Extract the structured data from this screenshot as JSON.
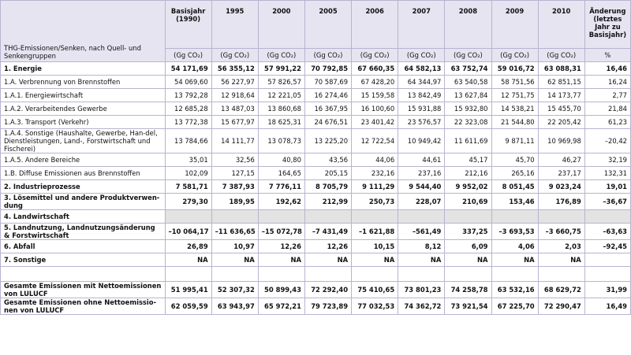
{
  "table": {
    "corner": "THG-Emissionen/Senken, nach Quell- und Senkengruppen",
    "columns": [
      "Basisjahr (1990)",
      "1995",
      "2000",
      "2005",
      "2006",
      "2007",
      "2008",
      "2009",
      "2010",
      "Änderung (letztes Jahr zu Basisjahr)"
    ],
    "units": [
      "(Gg CO₂)",
      "(Gg CO₂)",
      "(Gg CO₂)",
      "(Gg CO₂)",
      "(Gg CO₂)",
      "(Gg CO₂)",
      "(Gg CO₂)",
      "(Gg CO₂)",
      "(Gg CO₂)",
      "%"
    ],
    "rows": [
      {
        "label": "1. Energie",
        "bold": true,
        "values": [
          "54 171,69",
          "56 355,12",
          "57 991,22",
          "70 792,85",
          "67 660,35",
          "64 582,13",
          "63 752,74",
          "59 016,72",
          "63 088,31",
          "16,46"
        ]
      },
      {
        "label": "1.A. Verbrennung von Brennstoffen",
        "values": [
          "54 069,60",
          "56 227,97",
          "57 826,57",
          "70 587,69",
          "67 428,20",
          "64 344,97",
          "63 540,58",
          "58 751,56",
          "62 851,15",
          "16,24"
        ]
      },
      {
        "label": "1.A.1. Energiewirtschaft",
        "values": [
          "13 792,28",
          "12 918,64",
          "12 221,05",
          "16 274,46",
          "15 159,58",
          "13 842,49",
          "13 627,84",
          "12 751,75",
          "14 173,77",
          "2,77"
        ]
      },
      {
        "label": "1.A.2. Verarbeitendes Gewerbe",
        "values": [
          "12 685,28",
          "13 487,03",
          "13 860,68",
          "16 367,95",
          "16 100,60",
          "15 931,88",
          "15 932,80",
          "14 538,21",
          "15 455,70",
          "21,84"
        ]
      },
      {
        "label": "1.A.3. Transport (Verkehr)",
        "values": [
          "13 772,38",
          "15 677,97",
          "18 625,31",
          "24 676,51",
          "23 401,42",
          "23 576,57",
          "22 323,08",
          "21 544,80",
          "22 205,42",
          "61,23"
        ]
      },
      {
        "label": "1.A.4. Sonstige (Haushalte, Gewerbe, Han-del, Dienstleistungen, Land-, Forstwirtschaft und Fischerei)",
        "values": [
          "13 784,66",
          "14 111,77",
          "13 078,73",
          "13 225,20",
          "12 722,54",
          "10 949,42",
          "11 611,69",
          "9 871,11",
          "10 969,98",
          "–20,42"
        ]
      },
      {
        "label": "1.A.5. Andere Bereiche",
        "values": [
          "35,01",
          "32,56",
          "40,80",
          "43,56",
          "44,06",
          "44,61",
          "45,17",
          "45,70",
          "46,27",
          "32,19"
        ]
      },
      {
        "label": "1.B. Diffuse Emissionen aus Brennstoffen",
        "values": [
          "102,09",
          "127,15",
          "164,65",
          "205,15",
          "232,16",
          "237,16",
          "212,16",
          "265,16",
          "237,17",
          "132,31"
        ]
      },
      {
        "label": "2. Industrieprozesse",
        "bold": true,
        "values": [
          "7 581,71",
          "7 387,93",
          "7 776,11",
          "8 705,79",
          "9 111,29",
          "9 544,40",
          "9 952,02",
          "8 051,45",
          "9 023,24",
          "19,01"
        ]
      },
      {
        "label": "3. Lösemittel und andere Produktverwen-dung",
        "bold": true,
        "values": [
          "279,30",
          "189,95",
          "192,62",
          "212,99",
          "250,73",
          "228,07",
          "210,69",
          "153,46",
          "176,89",
          "–36,67"
        ]
      },
      {
        "label": "4. Landwirtschaft",
        "bold": true,
        "shaded": true,
        "values": []
      },
      {
        "label": "5. Landnutzung, Landnutzungsänderung & Forstwirtschaft",
        "bold": true,
        "values": [
          "–10 064,17",
          "–11 636,65",
          "–15 072,78",
          "–7 431,49",
          "–1 621,88",
          "–561,49",
          "337,25",
          "–3 693,53",
          "–3 660,75",
          "–63,63"
        ]
      },
      {
        "label": "6. Abfall",
        "bold": true,
        "values": [
          "26,89",
          "10,97",
          "12,26",
          "12,26",
          "10,15",
          "8,12",
          "6,09",
          "4,06",
          "2,03",
          "–92,45"
        ]
      },
      {
        "label": "7. Sonstige",
        "bold": true,
        "values": [
          "NA",
          "NA",
          "NA",
          "NA",
          "NA",
          "NA",
          "NA",
          "NA",
          "NA"
        ]
      },
      {
        "label": "Gesamte Emissionen mit Nettoemissionen von LULUCF",
        "bold": true,
        "spaced": true,
        "values": [
          "51 995,41",
          "52 307,32",
          "50 899,43",
          "72 292,40",
          "75 410,65",
          "73 801,23",
          "74 258,78",
          "63 532,16",
          "68 629,72",
          "31,99"
        ]
      },
      {
        "label": "Gesamte Emissionen ohne Nettoemissio-nen von LULUCF",
        "bold": true,
        "values": [
          "62 059,59",
          "63 943,97",
          "65 972,21",
          "79 723,89",
          "77 032,53",
          "74 362,72",
          "73 921,54",
          "67 225,70",
          "72 290,47",
          "16,49"
        ]
      }
    ]
  }
}
